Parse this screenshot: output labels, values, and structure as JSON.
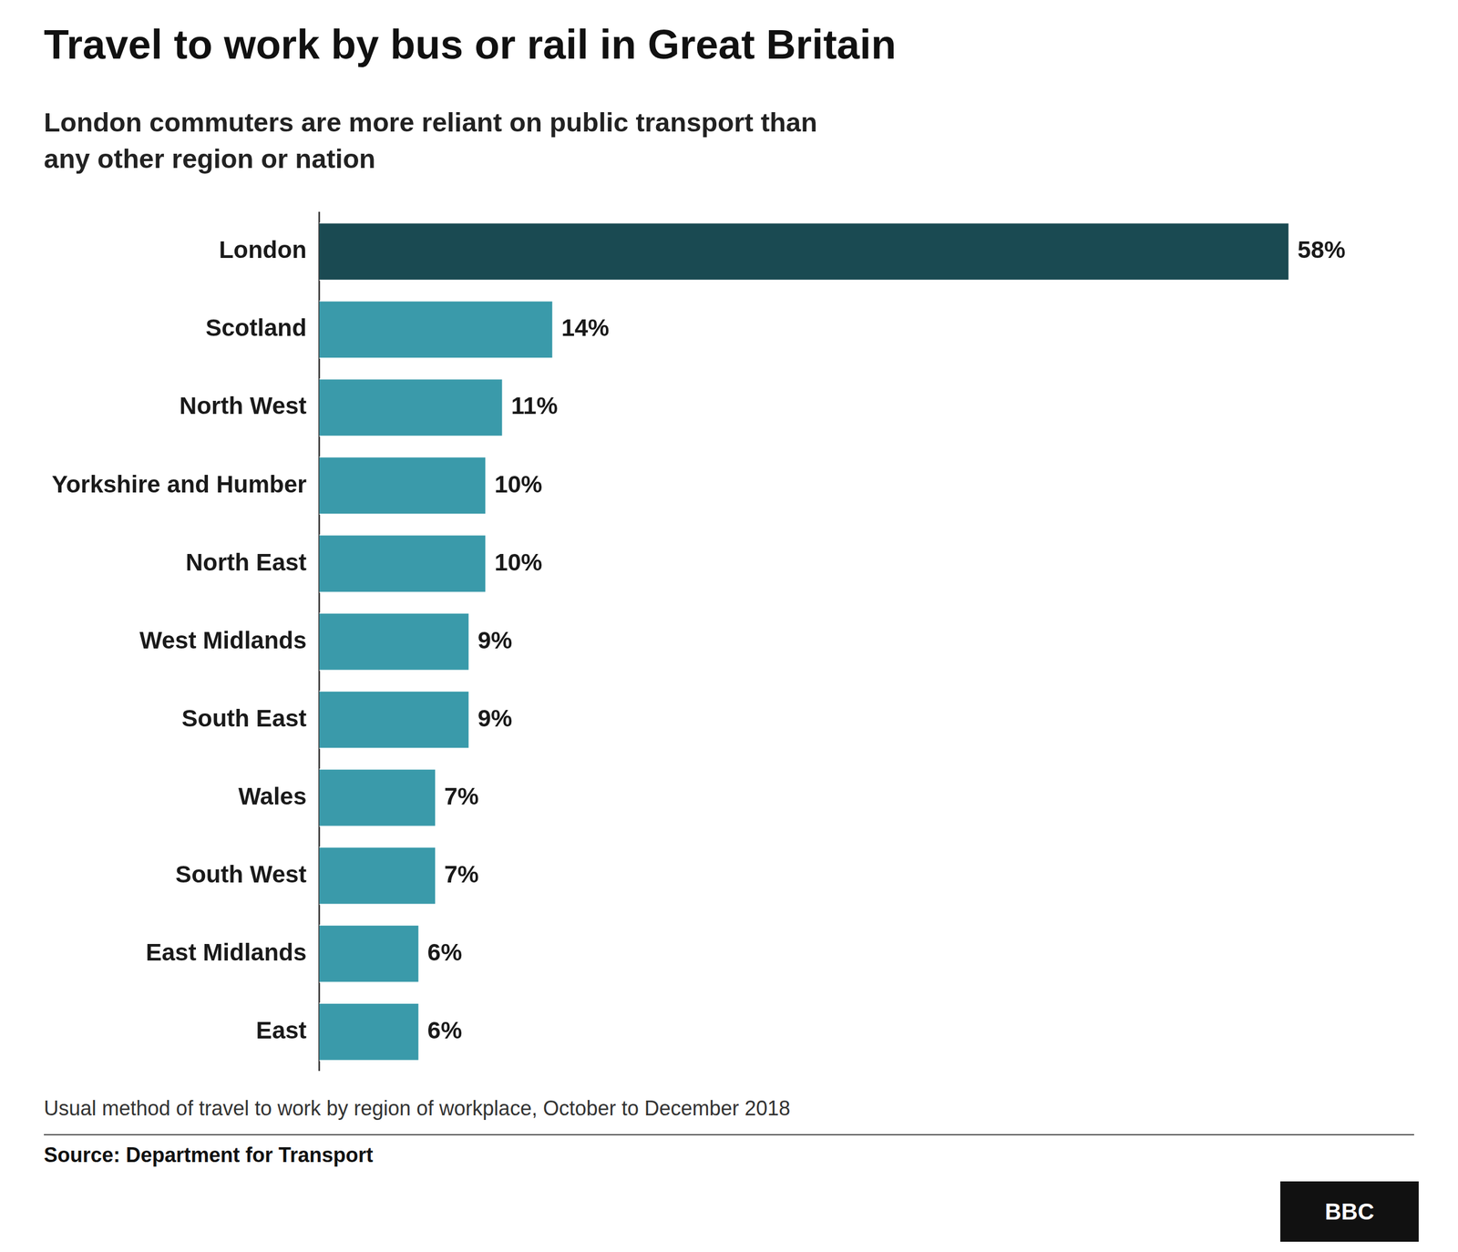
{
  "chart_data": {
    "type": "bar",
    "orientation": "horizontal",
    "title": "Travel to work by bus or rail in Great Britain",
    "subtitle": "London commuters are more reliant on public transport than\nany other region or nation",
    "categories": [
      "London",
      "Scotland",
      "North West",
      "Yorkshire and Humber",
      "North East",
      "West Midlands",
      "South East",
      "Wales",
      "South West",
      "East Midlands",
      "East"
    ],
    "values": [
      58,
      14,
      11,
      10,
      10,
      9,
      9,
      7,
      7,
      6,
      6
    ],
    "value_labels": [
      "58%",
      "14%",
      "11%",
      "10%",
      "10%",
      "9%",
      "9%",
      "7%",
      "7%",
      "6%",
      "6%"
    ],
    "colors": [
      "#1a4a52",
      "#3a9aaa",
      "#3a9aaa",
      "#3a9aaa",
      "#3a9aaa",
      "#3a9aaa",
      "#3a9aaa",
      "#3a9aaa",
      "#3a9aaa",
      "#3a9aaa",
      "#3a9aaa"
    ],
    "xlim": [
      0,
      65
    ],
    "data_labels": true,
    "tick_labels": "y",
    "grid": false,
    "footnote": "Usual method of travel to work by region of workplace, October to December 2018",
    "source": "Source: Department for Transport",
    "logo": "BBC"
  }
}
